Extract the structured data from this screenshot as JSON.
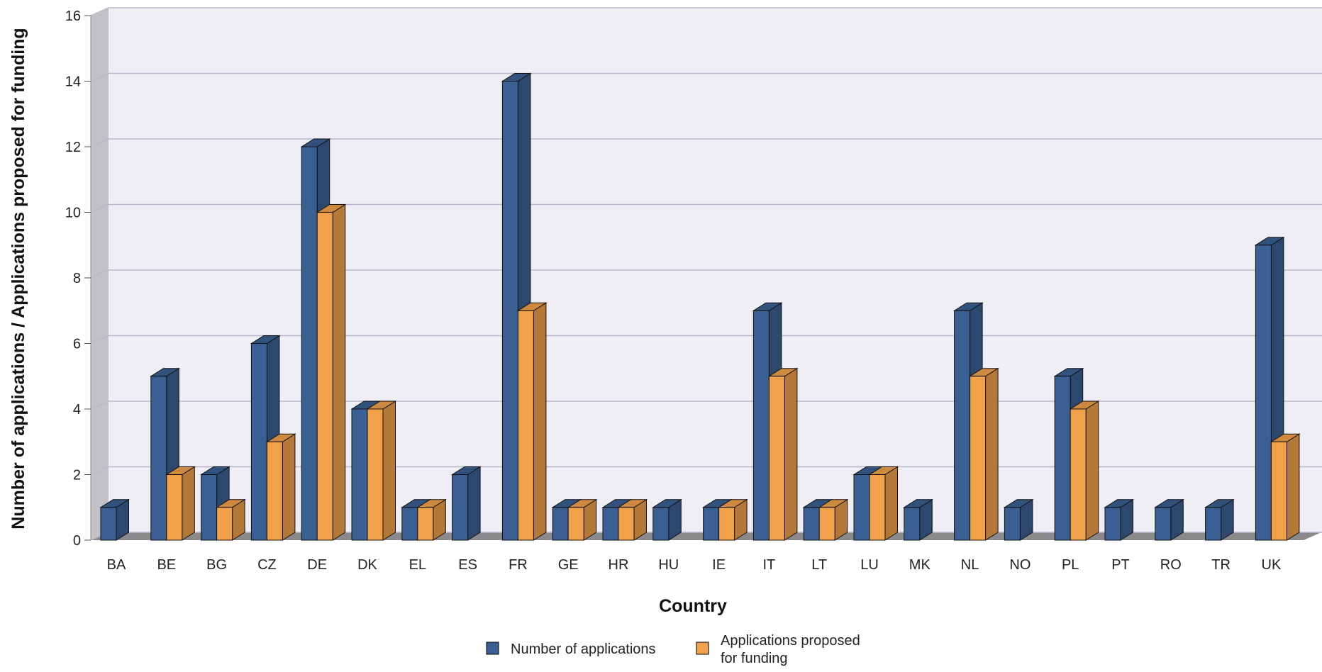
{
  "chart_data": {
    "type": "bar",
    "title": "",
    "xlabel": "Country",
    "ylabel": "Number of applications / Applications proposed for funding",
    "ylim": [
      0,
      16
    ],
    "yticks": [
      0,
      2,
      4,
      6,
      8,
      10,
      12,
      14,
      16
    ],
    "grid": true,
    "legend_position": "bottom",
    "categories": [
      "BA",
      "BE",
      "BG",
      "CZ",
      "DE",
      "DK",
      "EL",
      "ES",
      "FR",
      "GE",
      "HR",
      "HU",
      "IE",
      "IT",
      "LT",
      "LU",
      "MK",
      "NL",
      "NO",
      "PL",
      "PT",
      "RO",
      "TR",
      "UK"
    ],
    "series": [
      {
        "name": "Number of applications",
        "color": "#3a6093",
        "values": [
          1,
          5,
          2,
          6,
          12,
          4,
          1,
          2,
          14,
          1,
          1,
          1,
          1,
          7,
          1,
          2,
          1,
          7,
          1,
          5,
          1,
          1,
          1,
          9
        ]
      },
      {
        "name": "Applications proposed for funding",
        "color": "#f0a14a",
        "values": [
          0,
          2,
          1,
          3,
          10,
          4,
          1,
          0,
          7,
          1,
          1,
          0,
          1,
          5,
          1,
          2,
          0,
          5,
          0,
          4,
          0,
          0,
          0,
          3
        ]
      }
    ],
    "legend": {
      "items": [
        {
          "label": "Number of applications",
          "color": "#3a6093"
        },
        {
          "label_line1": "Applications proposed",
          "label_line2": "for funding",
          "color": "#f0a14a"
        }
      ]
    }
  }
}
